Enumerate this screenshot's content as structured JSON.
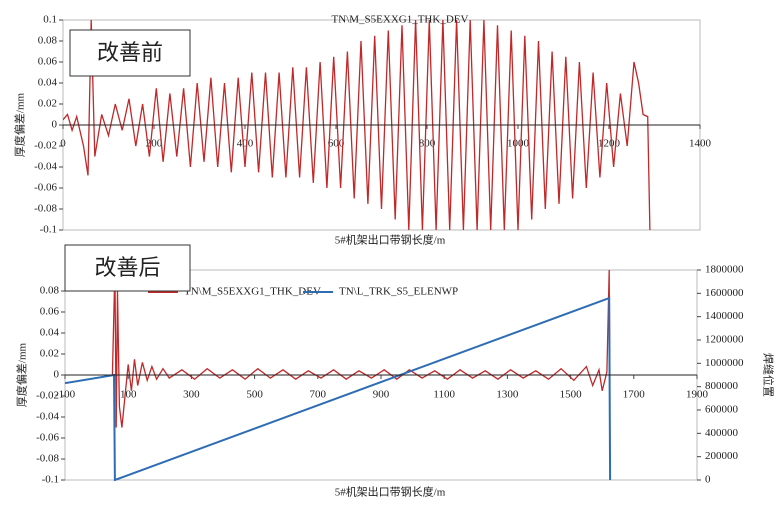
{
  "chart_data": [
    {
      "type": "line",
      "title": "TN\\M_S5EXXG1_THK_DEV",
      "annotation": "改善前",
      "xlabel": "5#机架出口带钢长度/m",
      "ylabel": "厚度偏差/mm",
      "xlim": [
        0,
        1400
      ],
      "xticks": [
        0,
        200,
        400,
        600,
        800,
        1000,
        1200,
        1400
      ],
      "ylim": [
        -0.1,
        0.1
      ],
      "yticks": [
        -0.1,
        -0.08,
        -0.06,
        -0.04,
        -0.02,
        0,
        0.02,
        0.04,
        0.06,
        0.08,
        0.1
      ],
      "series": [
        {
          "color": "#c0282a",
          "x": [
            0,
            10,
            20,
            30,
            45,
            55,
            62,
            70,
            85,
            100,
            115,
            130,
            145,
            160,
            175,
            190,
            205,
            220,
            235,
            250,
            265,
            280,
            295,
            310,
            325,
            340,
            355,
            370,
            385,
            400,
            415,
            430,
            445,
            460,
            475,
            490,
            505,
            520,
            535,
            550,
            565,
            580,
            595,
            610,
            625,
            640,
            655,
            670,
            685,
            700,
            715,
            730,
            745,
            760,
            775,
            790,
            805,
            820,
            835,
            850,
            865,
            880,
            895,
            910,
            925,
            940,
            955,
            970,
            985,
            1000,
            1015,
            1030,
            1045,
            1060,
            1075,
            1090,
            1105,
            1120,
            1135,
            1150,
            1165,
            1180,
            1195,
            1210,
            1225,
            1240,
            1255,
            1265,
            1275,
            1285,
            1290
          ],
          "values": [
            0.005,
            0.01,
            -0.005,
            0.008,
            -0.02,
            -0.048,
            0.1,
            -0.03,
            0.01,
            -0.01,
            0.02,
            -0.005,
            0.025,
            -0.02,
            0.02,
            -0.03,
            0.035,
            -0.035,
            0.03,
            -0.03,
            0.035,
            -0.04,
            0.04,
            -0.035,
            0.045,
            -0.04,
            0.04,
            -0.045,
            0.045,
            -0.04,
            0.05,
            -0.045,
            0.05,
            -0.05,
            0.05,
            -0.05,
            0.055,
            -0.05,
            0.055,
            -0.055,
            0.06,
            -0.06,
            0.065,
            -0.06,
            0.07,
            -0.07,
            0.08,
            -0.075,
            0.085,
            -0.08,
            0.09,
            -0.09,
            0.095,
            -0.1,
            0.1,
            -0.1,
            0.1,
            -0.1,
            0.1,
            -0.1,
            0.1,
            -0.1,
            0.1,
            -0.1,
            0.1,
            -0.1,
            0.095,
            -0.1,
            0.09,
            -0.1,
            0.085,
            -0.09,
            0.08,
            -0.08,
            0.07,
            -0.075,
            0.065,
            -0.07,
            0.06,
            -0.06,
            0.05,
            -0.05,
            0.04,
            -0.04,
            0.03,
            -0.02,
            0.06,
            0.04,
            0.01,
            0.008,
            -0.1
          ]
        }
      ]
    },
    {
      "type": "line",
      "annotation": "改善后",
      "xlabel": "5#机架出口带钢长度/m",
      "ylabel": "厚度偏差/mm",
      "y2label": "焊缝位置",
      "xlim": [
        -100,
        1900
      ],
      "xticks": [
        -100,
        100,
        300,
        500,
        700,
        900,
        1100,
        1300,
        1500,
        1700,
        1900
      ],
      "ylim": [
        -0.1,
        0.1
      ],
      "yticks": [
        -0.1,
        -0.08,
        -0.06,
        -0.04,
        -0.02,
        0,
        0.02,
        0.04,
        0.06,
        0.08
      ],
      "y2lim": [
        0,
        1800000
      ],
      "y2ticks": [
        0,
        200000,
        400000,
        600000,
        800000,
        1000000,
        1200000,
        1400000,
        1600000,
        1800000
      ],
      "series": [
        {
          "name": "TN\\M_S5EXXG1_THK_DEV",
          "color": "#c0282a",
          "x": [
            50,
            58,
            62,
            66,
            72,
            80,
            90,
            100,
            110,
            120,
            130,
            145,
            160,
            175,
            190,
            210,
            230,
            270,
            310,
            350,
            390,
            430,
            470,
            510,
            550,
            590,
            630,
            670,
            710,
            750,
            790,
            830,
            870,
            910,
            950,
            990,
            1030,
            1070,
            1110,
            1150,
            1190,
            1230,
            1270,
            1310,
            1350,
            1390,
            1430,
            1470,
            1510,
            1550,
            1570,
            1590,
            1600,
            1615,
            1622,
            1625
          ],
          "values": [
            0,
            0.1,
            -0.05,
            0.08,
            -0.03,
            -0.05,
            -0.02,
            0.01,
            -0.015,
            0.015,
            -0.01,
            0.012,
            -0.005,
            0.008,
            -0.004,
            0.006,
            -0.003,
            0.005,
            -0.004,
            0.006,
            -0.003,
            0.005,
            -0.004,
            0.006,
            -0.003,
            0.005,
            -0.004,
            0.004,
            -0.003,
            0.005,
            -0.004,
            0.004,
            -0.003,
            0.005,
            -0.004,
            0.005,
            -0.003,
            0.004,
            -0.004,
            0.005,
            -0.003,
            0.004,
            -0.004,
            0.005,
            -0.003,
            0.004,
            -0.004,
            0.006,
            -0.005,
            0.008,
            -0.01,
            0.005,
            -0.015,
            0.003,
            0.1,
            -0.1
          ]
        },
        {
          "name": "TN\\L_TRK_S5_ELENWP",
          "color": "#2e6db4",
          "axis": "y2",
          "x": [
            -100,
            55,
            58,
            1622,
            1625
          ],
          "values": [
            830000,
            900000,
            0,
            1560000,
            0
          ]
        }
      ]
    }
  ]
}
